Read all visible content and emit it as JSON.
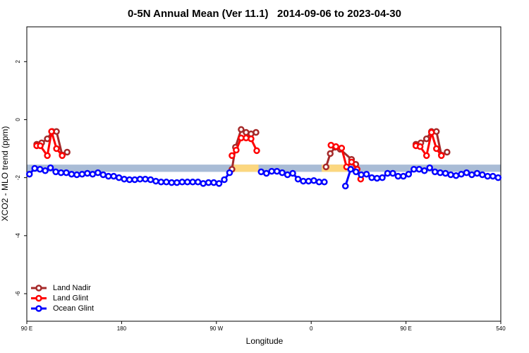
{
  "chart_data": {
    "type": "line",
    "title": "0-5N Annual Mean (Ver 11.1)   2014-09-06 to 2023-04-30",
    "xlabel": "Longitude",
    "ylabel": "XCO2 - MLO trend (ppm)",
    "xlim": [
      90,
      540
    ],
    "ylim": [
      -6.95,
      3.2
    ],
    "xticks": [
      {
        "value": 90,
        "label": "90 E"
      },
      180,
      {
        "value": 270,
        "label": "90 W"
      },
      {
        "value": 360,
        "label": "0"
      },
      {
        "value": 450,
        "label": "90 E"
      },
      540
    ],
    "yticks": [
      -6,
      -4,
      -2,
      0,
      2
    ],
    "legend": "bottom-left",
    "band": {
      "range": [
        -1.8,
        -1.55
      ],
      "color": "#a9bcd6",
      "highlight_color": "#fcd77f",
      "highlights": [
        [
          285,
          310
        ],
        [
          370,
          394
        ]
      ]
    },
    "series": [
      {
        "name": "Land Nadir",
        "color": "#a52a2a",
        "x": [
          99.4,
          104.1,
          109.5,
          114.2,
          118.2,
          123.6,
          128.3,
          null,
          284.8,
          288.1,
          293.5,
          298.2,
          302.9,
          307.6,
          null,
          374.1,
          378.1,
          382.8,
          387.5,
          398.3,
          402.3,
          null,
          459.4,
          464.1,
          469.5,
          474.2,
          478.9,
          483.6,
          489
        ],
        "values": [
          -0.85,
          -0.8,
          -0.66,
          -0.41,
          -0.41,
          -1.22,
          -1.12,
          null,
          -1.71,
          -0.95,
          -0.34,
          -0.44,
          -0.49,
          -0.44,
          null,
          -1.63,
          -1.17,
          -0.95,
          -1.02,
          -1.37,
          -1.54,
          null,
          -0.85,
          -0.8,
          -0.66,
          -0.41,
          -0.41,
          -1.22,
          -1.12
        ]
      },
      {
        "name": "Land Glint",
        "color": "#ff0000",
        "x": [
          99.4,
          102.8,
          109.5,
          113.5,
          118.2,
          123.6,
          null,
          284.8,
          288.8,
          293.5,
          298.2,
          302.9,
          308.3,
          null,
          378.8,
          383.5,
          388.9,
          393.6,
          398.3,
          403.6,
          407,
          null,
          459.4,
          463.4,
          469.5,
          474.2,
          478.9,
          483.6
        ],
        "values": [
          -0.9,
          -0.9,
          -1.24,
          -0.41,
          -1.0,
          -1.24,
          null,
          -1.24,
          -1.05,
          -0.63,
          -0.63,
          -0.66,
          -1.07,
          null,
          -0.88,
          -0.93,
          -0.98,
          -1.63,
          -1.46,
          -1.71,
          -2.05,
          null,
          -0.9,
          -0.93,
          -1.24,
          -0.44,
          -1.0,
          -1.24
        ]
      },
      {
        "name": "Ocean Glint",
        "color": "#0000ff",
        "x": [
          92.5,
          97.5,
          102.5,
          107.5,
          112.5,
          117.5,
          122.5,
          127.5,
          132.5,
          137.5,
          142.5,
          147.5,
          152.5,
          157.5,
          162.5,
          167.5,
          172.5,
          177.5,
          182.5,
          187.5,
          192.5,
          197.5,
          202.5,
          207.5,
          212.5,
          217.5,
          222.5,
          227.5,
          232.5,
          237.5,
          242.5,
          247.5,
          252.5,
          257.5,
          262.5,
          267.5,
          272.5,
          277.5,
          282.5,
          null,
          312.5,
          317.5,
          322.5,
          327.5,
          332.5,
          337.5,
          342.5,
          347.5,
          352.5,
          357.5,
          362.5,
          367.5,
          372.5,
          null,
          392.5,
          397.5,
          402.5,
          407.5,
          412.5,
          417.5,
          422.5,
          427.5,
          432.5,
          437.5,
          442.5,
          447.5,
          452.5,
          457.5,
          462.5,
          467.5,
          472.5,
          477.5,
          482.5,
          487.5,
          492.5,
          497.5,
          502.5,
          507.5,
          512.5,
          517.5,
          522.5,
          527.5,
          532.5,
          537.5
        ],
        "values": [
          -1.88,
          -1.68,
          -1.71,
          -1.76,
          -1.66,
          -1.8,
          -1.83,
          -1.83,
          -1.88,
          -1.9,
          -1.88,
          -1.85,
          -1.88,
          -1.83,
          -1.9,
          -1.95,
          -1.95,
          -2.0,
          -2.05,
          -2.07,
          -2.07,
          -2.05,
          -2.05,
          -2.07,
          -2.12,
          -2.15,
          -2.15,
          -2.17,
          -2.17,
          -2.15,
          -2.15,
          -2.15,
          -2.15,
          -2.2,
          -2.17,
          -2.17,
          -2.2,
          -2.07,
          -1.83,
          null,
          -1.8,
          -1.85,
          -1.78,
          -1.78,
          -1.83,
          -1.9,
          -1.85,
          -2.05,
          -2.12,
          -2.12,
          -2.1,
          -2.15,
          -2.15,
          null,
          -2.29,
          -1.71,
          -1.8,
          -1.9,
          -1.88,
          -2.0,
          -2.02,
          -2.0,
          -1.85,
          -1.85,
          -1.95,
          -1.95,
          -1.88,
          -1.71,
          -1.71,
          -1.76,
          -1.66,
          -1.8,
          -1.83,
          -1.85,
          -1.9,
          -1.93,
          -1.88,
          -1.83,
          -1.9,
          -1.85,
          -1.9,
          -1.95,
          -1.95,
          -2.0
        ]
      }
    ]
  }
}
